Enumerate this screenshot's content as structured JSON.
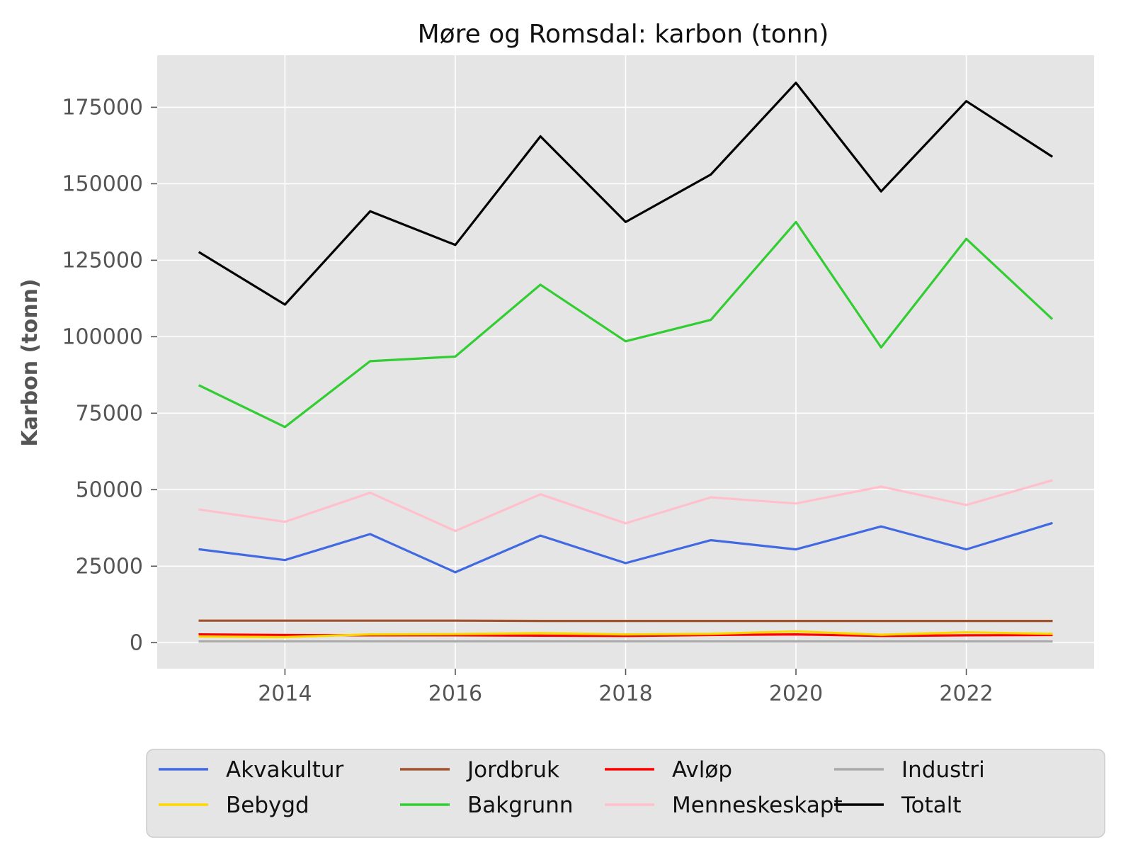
{
  "chart_data": {
    "type": "line",
    "title": "Møre og Romsdal: karbon (tonn)",
    "xlabel": "",
    "ylabel": "Karbon (tonn)",
    "x": [
      2013,
      2014,
      2015,
      2016,
      2017,
      2018,
      2019,
      2020,
      2021,
      2022,
      2023
    ],
    "xlim": [
      2012.5,
      2023.5
    ],
    "ylim": [
      -8500,
      192000
    ],
    "xticks": [
      2014,
      2016,
      2018,
      2020,
      2022
    ],
    "xtick_labels": [
      "2014",
      "2016",
      "2018",
      "2020",
      "2022"
    ],
    "yticks": [
      0,
      25000,
      50000,
      75000,
      100000,
      125000,
      150000,
      175000
    ],
    "ytick_labels": [
      "0",
      "25000",
      "50000",
      "75000",
      "100000",
      "125000",
      "150000",
      "175000"
    ],
    "grid": true,
    "legend_position": "bottom",
    "series": [
      {
        "name": "Akvakultur",
        "color": "#4169e1",
        "values": [
          30500,
          27000,
          35500,
          23000,
          35000,
          26000,
          33500,
          30500,
          38000,
          30500,
          39000
        ]
      },
      {
        "name": "Jordbruk",
        "color": "#a0522d",
        "values": [
          7200,
          7200,
          7200,
          7200,
          7100,
          7100,
          7100,
          7100,
          7100,
          7100,
          7100
        ]
      },
      {
        "name": "Avløp",
        "color": "#ff0000",
        "values": [
          2700,
          2500,
          2400,
          2400,
          2300,
          2200,
          2500,
          2700,
          2200,
          2400,
          2500
        ]
      },
      {
        "name": "Industri",
        "color": "#a9a9a9",
        "values": [
          400,
          400,
          400,
          400,
          400,
          400,
          400,
          400,
          400,
          400,
          400
        ]
      },
      {
        "name": "Bebygd",
        "color": "#ffd700",
        "values": [
          2000,
          1800,
          2700,
          2800,
          3100,
          2700,
          2900,
          3700,
          2600,
          3400,
          2900
        ]
      },
      {
        "name": "Bakgrunn",
        "color": "#32cd32",
        "values": [
          84000,
          70500,
          92000,
          93500,
          117000,
          98500,
          105500,
          137500,
          96500,
          132000,
          106000
        ]
      },
      {
        "name": "Menneskeskapt",
        "color": "#ffc0cb",
        "values": [
          43500,
          39500,
          49000,
          36500,
          48500,
          39000,
          47500,
          45500,
          51000,
          45000,
          53000
        ]
      },
      {
        "name": "Totalt",
        "color": "#000000",
        "values": [
          127500,
          110500,
          141000,
          130000,
          165500,
          137500,
          153000,
          183000,
          147500,
          177000,
          159000
        ]
      }
    ]
  }
}
